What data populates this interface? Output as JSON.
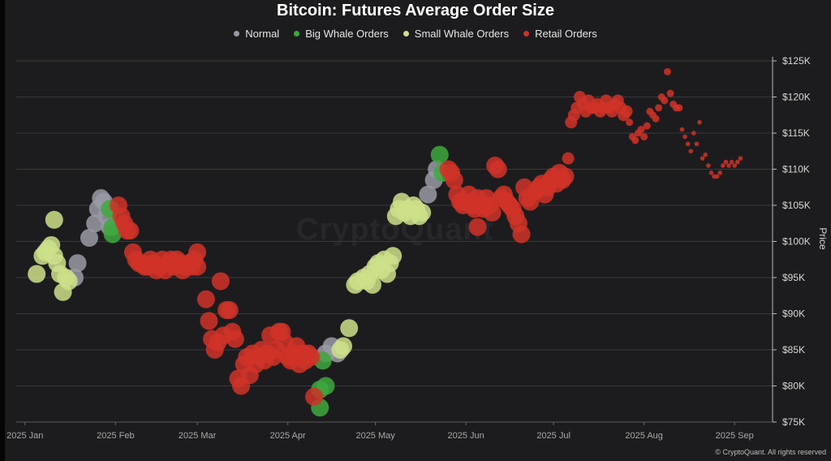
{
  "chart_data": {
    "type": "scatter",
    "title": "Bitcoin: Futures Average Order Size",
    "ylabel": "Price",
    "xlabel": "",
    "ylim": [
      75000,
      125000
    ],
    "y_ticks": [
      75000,
      80000,
      85000,
      90000,
      95000,
      100000,
      105000,
      110000,
      115000,
      120000,
      125000
    ],
    "y_tick_labels": [
      "$75K",
      "$80K",
      "$85K",
      "$90K",
      "$95K",
      "$100K",
      "$105K",
      "$110K",
      "$115K",
      "$120K",
      "$125K"
    ],
    "x_range_days": [
      -3,
      256
    ],
    "x_ticks": [
      {
        "label": "2025 Jan",
        "day": 0
      },
      {
        "label": "2025 Feb",
        "day": 31
      },
      {
        "label": "2025 Mar",
        "day": 59
      },
      {
        "label": "2025 Apr",
        "day": 90
      },
      {
        "label": "2025 May",
        "day": 120
      },
      {
        "label": "2025 Jun",
        "day": 151
      },
      {
        "label": "2025 Jul",
        "day": 181
      },
      {
        "label": "2025 Aug",
        "day": 212
      },
      {
        "label": "2025 Sep",
        "day": 243
      }
    ],
    "x_unit": "days since 2025-01-01",
    "grid": true,
    "legend_position": "top-center",
    "series": [
      {
        "name": "Normal",
        "color": "#9a9aa6",
        "points": [
          [
            17,
            95000
          ],
          [
            18,
            97000
          ],
          [
            22,
            100500
          ],
          [
            24,
            102500
          ],
          [
            25,
            104500
          ],
          [
            26,
            106000
          ],
          [
            27,
            105500
          ],
          [
            28,
            103500
          ],
          [
            29,
            102000
          ],
          [
            138,
            106500
          ],
          [
            140,
            108500
          ],
          [
            141,
            110000
          ],
          [
            103,
            84500
          ],
          [
            105,
            85500
          ],
          [
            107,
            84500
          ]
        ]
      },
      {
        "name": "Big Whale Orders",
        "color": "#3ea83e",
        "points": [
          [
            29,
            104500
          ],
          [
            30,
            102000
          ],
          [
            30,
            101000
          ],
          [
            102,
            83500
          ],
          [
            101,
            79500
          ],
          [
            101,
            77000
          ],
          [
            103,
            80000
          ],
          [
            142,
            112000
          ],
          [
            143,
            109500
          ]
        ]
      },
      {
        "name": "Small Whale Orders",
        "color": "#cde089",
        "points": [
          [
            7,
            98500
          ],
          [
            8,
            99000
          ],
          [
            9,
            99500
          ],
          [
            10,
            98000
          ],
          [
            11,
            97000
          ],
          [
            12,
            95500
          ],
          [
            13,
            93000
          ],
          [
            14,
            95000
          ],
          [
            15,
            94500
          ],
          [
            10,
            103000
          ],
          [
            4,
            95500
          ],
          [
            6,
            98000
          ],
          [
            108,
            85000
          ],
          [
            109,
            85500
          ],
          [
            111,
            88000
          ],
          [
            113,
            94000
          ],
          [
            114,
            94500
          ],
          [
            116,
            95000
          ],
          [
            117,
            94500
          ],
          [
            118,
            95500
          ],
          [
            119,
            94000
          ],
          [
            120,
            96500
          ],
          [
            121,
            97000
          ],
          [
            122,
            96000
          ],
          [
            123,
            97500
          ],
          [
            124,
            95500
          ],
          [
            125,
            97000
          ],
          [
            126,
            98000
          ],
          [
            127,
            103500
          ],
          [
            128,
            104500
          ],
          [
            129,
            105500
          ],
          [
            130,
            104000
          ],
          [
            131,
            104500
          ],
          [
            132,
            103500
          ],
          [
            133,
            105000
          ],
          [
            134,
            104500
          ],
          [
            135,
            103500
          ],
          [
            136,
            104000
          ]
        ]
      },
      {
        "name": "Retail Orders",
        "color": "#d03228",
        "points": [
          [
            32,
            105000
          ],
          [
            33,
            103500
          ],
          [
            34,
            102500
          ],
          [
            35,
            101500
          ],
          [
            36,
            101500
          ],
          [
            37,
            98500
          ],
          [
            38,
            97500
          ],
          [
            39,
            97000
          ],
          [
            40,
            97000
          ],
          [
            41,
            96500
          ],
          [
            42,
            96500
          ],
          [
            43,
            97500
          ],
          [
            44,
            97000
          ],
          [
            45,
            96000
          ],
          [
            46,
            96500
          ],
          [
            47,
            97500
          ],
          [
            48,
            96000
          ],
          [
            49,
            97000
          ],
          [
            50,
            97500
          ],
          [
            51,
            96500
          ],
          [
            52,
            97500
          ],
          [
            53,
            97000
          ],
          [
            54,
            96000
          ],
          [
            55,
            96500
          ],
          [
            56,
            97000
          ],
          [
            57,
            96500
          ],
          [
            58,
            97500
          ],
          [
            59,
            98500
          ],
          [
            59,
            96500
          ],
          [
            62,
            92000
          ],
          [
            63,
            89000
          ],
          [
            64,
            86500
          ],
          [
            65,
            85000
          ],
          [
            66,
            86000
          ],
          [
            67,
            94500
          ],
          [
            68,
            87000
          ],
          [
            69,
            90500
          ],
          [
            70,
            90500
          ],
          [
            71,
            87500
          ],
          [
            72,
            86500
          ],
          [
            73,
            81000
          ],
          [
            74,
            80000
          ],
          [
            75,
            83000
          ],
          [
            76,
            84000
          ],
          [
            77,
            81500
          ],
          [
            78,
            84500
          ],
          [
            79,
            83000
          ],
          [
            80,
            84000
          ],
          [
            81,
            85000
          ],
          [
            82,
            83500
          ],
          [
            83,
            84500
          ],
          [
            84,
            87000
          ],
          [
            85,
            84000
          ],
          [
            86,
            85000
          ],
          [
            87,
            87500
          ],
          [
            88,
            87500
          ],
          [
            89,
            86000
          ],
          [
            90,
            84000
          ],
          [
            91,
            83500
          ],
          [
            92,
            84500
          ],
          [
            93,
            85500
          ],
          [
            94,
            83000
          ],
          [
            95,
            84500
          ],
          [
            96,
            83500
          ],
          [
            97,
            84500
          ],
          [
            98,
            84000
          ],
          [
            99,
            78500
          ],
          [
            145,
            110000
          ],
          [
            146,
            109500
          ],
          [
            147,
            108500
          ],
          [
            148,
            106500
          ],
          [
            149,
            105500
          ],
          [
            150,
            105000
          ],
          [
            151,
            105500
          ],
          [
            152,
            106500
          ],
          [
            153,
            105000
          ],
          [
            154,
            104500
          ],
          [
            155,
            106000
          ],
          [
            156,
            105000
          ],
          [
            157,
            104500
          ],
          [
            158,
            106000
          ],
          [
            159,
            105000
          ],
          [
            160,
            104000
          ],
          [
            161,
            110500
          ],
          [
            162,
            110000
          ],
          [
            163,
            106000
          ],
          [
            164,
            106500
          ],
          [
            165,
            105500
          ],
          [
            166,
            105000
          ],
          [
            167,
            104500
          ],
          [
            168,
            103500
          ],
          [
            169,
            102500
          ],
          [
            170,
            101000
          ],
          [
            171,
            107500
          ],
          [
            172,
            106000
          ],
          [
            173,
            105500
          ],
          [
            155,
            102000
          ],
          [
            175,
            107000
          ],
          [
            176,
            107500
          ],
          [
            177,
            108000
          ],
          [
            178,
            106500
          ],
          [
            179,
            107500
          ],
          [
            180,
            108500
          ],
          [
            181,
            109000
          ],
          [
            182,
            108000
          ],
          [
            183,
            109500
          ],
          [
            184,
            108500
          ],
          [
            185,
            109000
          ],
          [
            186,
            111500
          ],
          [
            187,
            116500
          ],
          [
            188,
            117500
          ],
          [
            189,
            118500
          ],
          [
            190,
            120000
          ],
          [
            191,
            119000
          ],
          [
            192,
            118000
          ],
          [
            193,
            119500
          ],
          [
            194,
            118500
          ],
          [
            195,
            118500
          ],
          [
            196,
            119000
          ],
          [
            197,
            118000
          ],
          [
            198,
            118500
          ],
          [
            199,
            119500
          ],
          [
            200,
            118500
          ],
          [
            201,
            118000
          ],
          [
            202,
            119000
          ],
          [
            203,
            119500
          ],
          [
            204,
            118500
          ],
          [
            205,
            117500
          ],
          [
            206,
            118000
          ],
          [
            207,
            116500
          ],
          [
            208,
            114500
          ],
          [
            209,
            114000
          ],
          [
            210,
            115000
          ],
          [
            211,
            115500
          ],
          [
            212,
            114500
          ],
          [
            213,
            116000
          ],
          [
            214,
            118000
          ],
          [
            215,
            117500
          ],
          [
            216,
            117000
          ],
          [
            217,
            118500
          ],
          [
            218,
            120000
          ],
          [
            219,
            119500
          ],
          [
            220,
            123500
          ],
          [
            221,
            120500
          ],
          [
            222,
            119000
          ],
          [
            223,
            118500
          ],
          [
            224,
            118500
          ],
          [
            225,
            115500
          ],
          [
            226,
            114500
          ],
          [
            227,
            113500
          ],
          [
            228,
            112500
          ],
          [
            229,
            115000
          ],
          [
            230,
            113500
          ],
          [
            231,
            116500
          ],
          [
            232,
            111500
          ],
          [
            233,
            112000
          ],
          [
            234,
            110500
          ],
          [
            235,
            109500
          ],
          [
            236,
            109000
          ],
          [
            237,
            109000
          ],
          [
            238,
            109500
          ],
          [
            239,
            110500
          ],
          [
            240,
            111000
          ],
          [
            241,
            110500
          ],
          [
            242,
            111000
          ],
          [
            243,
            110500
          ],
          [
            244,
            111000
          ],
          [
            245,
            111500
          ]
        ]
      }
    ]
  },
  "watermark": "CryptoQuant",
  "copyright": "© CryptoQuant. All rights reserved"
}
